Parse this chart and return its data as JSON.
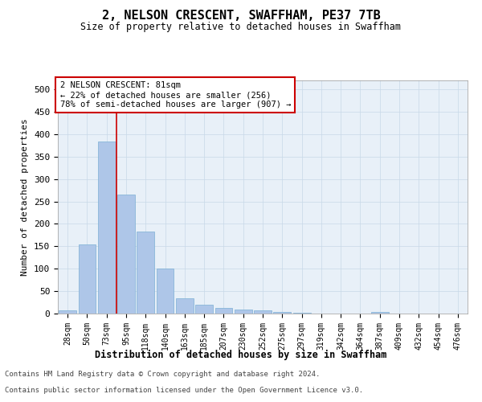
{
  "title": "2, NELSON CRESCENT, SWAFFHAM, PE37 7TB",
  "subtitle": "Size of property relative to detached houses in Swaffham",
  "xlabel": "Distribution of detached houses by size in Swaffham",
  "ylabel": "Number of detached properties",
  "categories": [
    "28sqm",
    "50sqm",
    "73sqm",
    "95sqm",
    "118sqm",
    "140sqm",
    "163sqm",
    "185sqm",
    "207sqm",
    "230sqm",
    "252sqm",
    "275sqm",
    "297sqm",
    "319sqm",
    "342sqm",
    "364sqm",
    "387sqm",
    "409sqm",
    "432sqm",
    "454sqm",
    "476sqm"
  ],
  "values": [
    7,
    155,
    383,
    265,
    183,
    101,
    34,
    20,
    12,
    9,
    8,
    4,
    1,
    0,
    0,
    0,
    4,
    0,
    0,
    0,
    0
  ],
  "bar_color": "#aec6e8",
  "bar_edge_color": "#7bafd4",
  "property_line_x": 2.5,
  "annotation_line1": "2 NELSON CRESCENT: 81sqm",
  "annotation_line2": "← 22% of detached houses are smaller (256)",
  "annotation_line3": "78% of semi-detached houses are larger (907) →",
  "annotation_box_color": "#ffffff",
  "annotation_box_edge": "#cc0000",
  "ylim": [
    0,
    520
  ],
  "yticks": [
    0,
    50,
    100,
    150,
    200,
    250,
    300,
    350,
    400,
    450,
    500
  ],
  "grid_color": "#c8d8e8",
  "background_color": "#e8f0f8",
  "footer_line1": "Contains HM Land Registry data © Crown copyright and database right 2024.",
  "footer_line2": "Contains public sector information licensed under the Open Government Licence v3.0."
}
